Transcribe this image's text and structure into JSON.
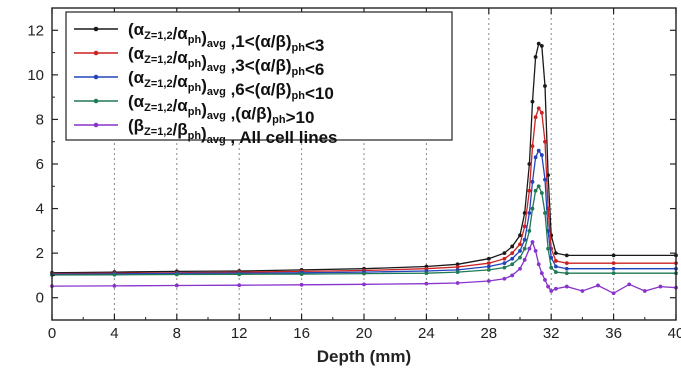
{
  "chart_data": {
    "type": "line",
    "xlabel": "Depth (mm)",
    "ylabel": "",
    "xlim": [
      0,
      40
    ],
    "ylim": [
      -1,
      13
    ],
    "xticks": [
      0,
      4,
      8,
      12,
      16,
      20,
      24,
      28,
      32,
      36,
      40
    ],
    "yticks": [
      0,
      2,
      4,
      6,
      8,
      10,
      12
    ],
    "grid": "vertical-dotted",
    "legend_position": "top-left",
    "series": [
      {
        "name": "(αZ=1,2/αph)avg ,1<(α/β)ph<3",
        "legend": {
          "open": "(α",
          "sub1": "Z=1,2",
          "mid1": "/α",
          "sub2": "ph",
          "close": ")",
          "sub3": "avg",
          "tail": " ,1<(α/β)",
          "sub4": "ph",
          "end": "<3"
        },
        "color": "#1a1a1a",
        "x": [
          0,
          4,
          8,
          12,
          16,
          20,
          24,
          26,
          28,
          29,
          29.5,
          30,
          30.3,
          30.6,
          30.8,
          31.0,
          31.2,
          31.4,
          31.6,
          31.8,
          32.0,
          32.3,
          33,
          36,
          40
        ],
        "y": [
          1.12,
          1.15,
          1.18,
          1.2,
          1.25,
          1.3,
          1.4,
          1.5,
          1.75,
          2.0,
          2.3,
          2.8,
          3.8,
          6.0,
          8.8,
          10.8,
          11.4,
          11.3,
          9.5,
          5.5,
          2.8,
          2.0,
          1.9,
          1.9,
          1.9
        ]
      },
      {
        "name": "(αZ=1,2/αph)avg ,3<(α/β)ph<6",
        "legend": {
          "open": "(α",
          "sub1": "Z=1,2",
          "mid1": "/α",
          "sub2": "ph",
          "close": ")",
          "sub3": "avg",
          "tail": " ,3<(α/β)",
          "sub4": "ph",
          "end": "<6"
        },
        "color": "#cc2222",
        "x": [
          0,
          4,
          8,
          12,
          16,
          20,
          24,
          26,
          28,
          29,
          29.5,
          30,
          30.3,
          30.6,
          30.8,
          31.0,
          31.2,
          31.4,
          31.6,
          31.8,
          32.0,
          32.3,
          33,
          36,
          40
        ],
        "y": [
          1.08,
          1.1,
          1.12,
          1.15,
          1.18,
          1.22,
          1.3,
          1.38,
          1.55,
          1.75,
          2.0,
          2.4,
          3.2,
          4.8,
          6.8,
          8.1,
          8.5,
          8.3,
          7.0,
          4.0,
          2.2,
          1.65,
          1.55,
          1.55,
          1.55
        ]
      },
      {
        "name": "(αZ=1,2/αph)avg ,6<(α/β)ph<10",
        "legend": {
          "open": "(α",
          "sub1": "Z=1,2",
          "mid1": "/α",
          "sub2": "ph",
          "close": ")",
          "sub3": "avg",
          "tail": " ,6<(α/β)",
          "sub4": "ph",
          "end": "<10"
        },
        "color": "#2244bb",
        "x": [
          0,
          4,
          8,
          12,
          16,
          20,
          24,
          26,
          28,
          29,
          29.5,
          30,
          30.3,
          30.6,
          30.8,
          31.0,
          31.2,
          31.4,
          31.6,
          31.8,
          32.0,
          32.3,
          33,
          36,
          40
        ],
        "y": [
          1.05,
          1.07,
          1.09,
          1.1,
          1.12,
          1.15,
          1.2,
          1.25,
          1.4,
          1.55,
          1.75,
          2.1,
          2.6,
          3.8,
          5.2,
          6.3,
          6.6,
          6.4,
          5.3,
          3.0,
          1.8,
          1.4,
          1.3,
          1.3,
          1.3
        ]
      },
      {
        "name": "(αZ=1,2/αph)avg ,(α/β)ph>10",
        "legend": {
          "open": "(α",
          "sub1": "Z=1,2",
          "mid1": "/α",
          "sub2": "ph",
          "close": ")",
          "sub3": "avg",
          "tail": " ,(α/β)",
          "sub4": "ph",
          "end": ">10"
        },
        "color": "#1f7a55",
        "x": [
          0,
          4,
          8,
          12,
          16,
          20,
          24,
          26,
          28,
          29,
          29.5,
          30,
          30.3,
          30.6,
          30.8,
          31.0,
          31.2,
          31.4,
          31.6,
          31.8,
          32.0,
          32.3,
          33,
          36,
          40
        ],
        "y": [
          1.02,
          1.03,
          1.04,
          1.05,
          1.06,
          1.08,
          1.1,
          1.15,
          1.25,
          1.35,
          1.5,
          1.8,
          2.2,
          3.0,
          4.0,
          4.8,
          5.0,
          4.7,
          3.8,
          2.2,
          1.35,
          1.15,
          1.1,
          1.1,
          1.1
        ]
      },
      {
        "name": "(βZ=1,2/βph)avg , All cell lines",
        "legend": {
          "open": "(β",
          "sub1": "Z=1,2",
          "mid1": "/β",
          "sub2": "ph",
          "close": ")",
          "sub3": "avg",
          "tail": " , All cell lines",
          "sub4": "",
          "end": ""
        },
        "color": "#8833cc",
        "x": [
          0,
          4,
          8,
          12,
          16,
          20,
          24,
          26,
          28,
          29,
          29.5,
          30,
          30.3,
          30.6,
          30.8,
          31.0,
          31.2,
          31.4,
          31.6,
          31.8,
          32.0,
          32.3,
          33,
          34,
          35,
          36,
          37,
          38,
          39,
          40
        ],
        "y": [
          0.52,
          0.53,
          0.55,
          0.56,
          0.58,
          0.6,
          0.63,
          0.66,
          0.75,
          0.85,
          1.0,
          1.3,
          1.7,
          2.2,
          2.5,
          2.1,
          1.5,
          1.1,
          0.8,
          0.5,
          0.3,
          0.4,
          0.5,
          0.3,
          0.55,
          0.2,
          0.6,
          0.3,
          0.5,
          0.45
        ]
      }
    ]
  }
}
